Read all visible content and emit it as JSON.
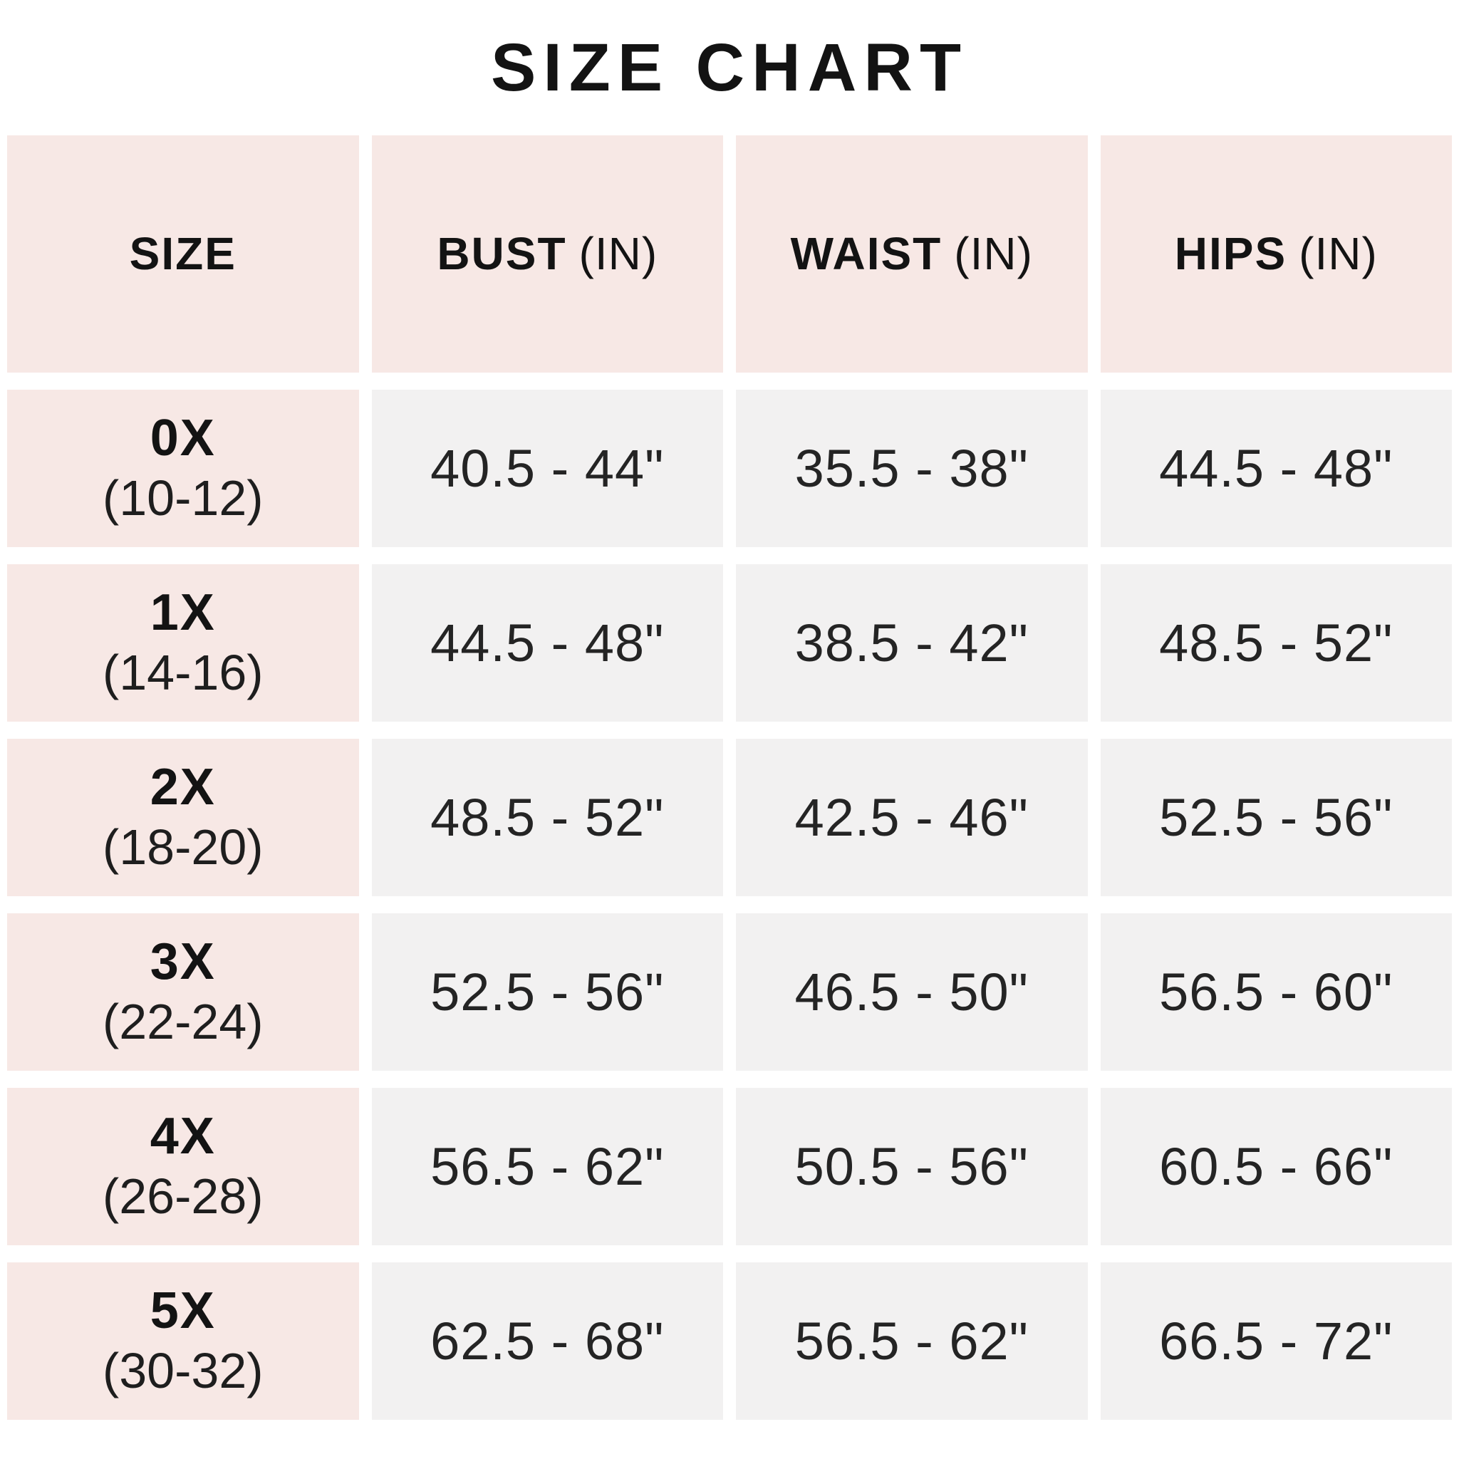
{
  "chart_data": {
    "type": "table",
    "title": "SIZE CHART",
    "columns": [
      {
        "label": "SIZE",
        "unit": ""
      },
      {
        "label": "BUST",
        "unit": "(IN)"
      },
      {
        "label": "WAIST",
        "unit": "(IN)"
      },
      {
        "label": "HIPS",
        "unit": "(IN)"
      }
    ],
    "rows": [
      {
        "size": "0X",
        "range": "(10-12)",
        "bust": "40.5 - 44\"",
        "waist": "35.5 - 38\"",
        "hips": "44.5 - 48\""
      },
      {
        "size": "1X",
        "range": "(14-16)",
        "bust": "44.5 - 48\"",
        "waist": "38.5 - 42\"",
        "hips": "48.5 - 52\""
      },
      {
        "size": "2X",
        "range": "(18-20)",
        "bust": "48.5 - 52\"",
        "waist": "42.5 - 46\"",
        "hips": "52.5 - 56\""
      },
      {
        "size": "3X",
        "range": "(22-24)",
        "bust": "52.5 - 56\"",
        "waist": "46.5 - 50\"",
        "hips": "56.5 - 60\""
      },
      {
        "size": "4X",
        "range": "(26-28)",
        "bust": "56.5 - 62\"",
        "waist": "50.5 - 56\"",
        "hips": "60.5 - 66\""
      },
      {
        "size": "5X",
        "range": "(30-32)",
        "bust": "62.5 - 68\"",
        "waist": "56.5 - 62\"",
        "hips": "66.5 - 72\""
      }
    ],
    "layout": {
      "grid": "off",
      "unit_system": "inches"
    }
  },
  "colors": {
    "header_pink": "#f7e8e5",
    "value_gray": "#f2f1f1",
    "text_dark": "#131313",
    "background": "#ffffff"
  }
}
